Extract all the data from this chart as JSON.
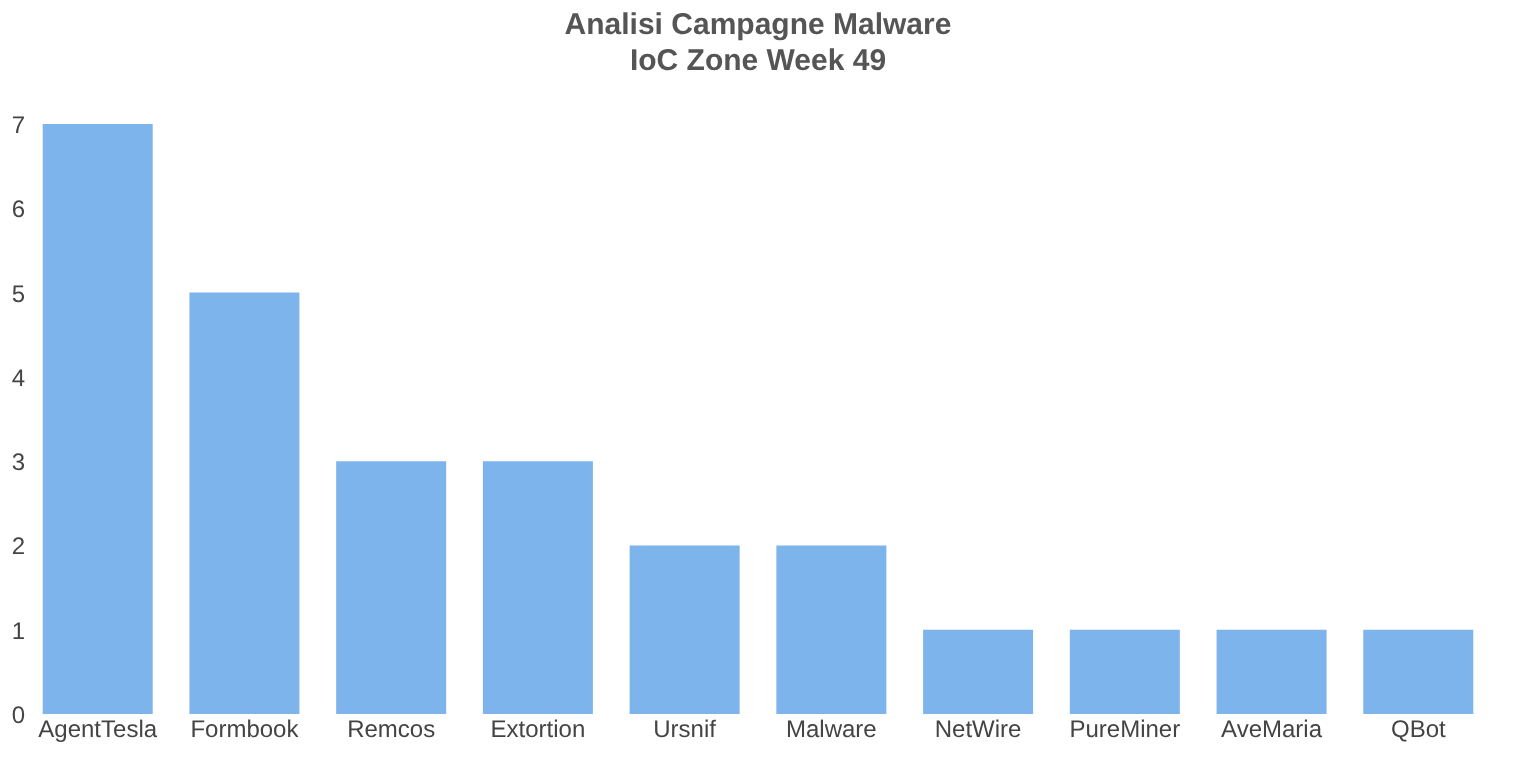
{
  "chart_data": {
    "type": "bar",
    "title": "Analisi Campagne Malware",
    "subtitle": "IoC Zone Week 49",
    "categories": [
      "AgentTesla",
      "Formbook",
      "Remcos",
      "Extortion",
      "Ursnif",
      "Malware",
      "NetWire",
      "PureMiner",
      "AveMaria",
      "QBot"
    ],
    "values": [
      7,
      5,
      3,
      3,
      2,
      2,
      1,
      1,
      1,
      1
    ],
    "color": "#7eb4ec",
    "ylim": [
      0,
      7
    ],
    "yticks": [
      0,
      1,
      2,
      3,
      4,
      5,
      6,
      7
    ],
    "grid": false
  }
}
